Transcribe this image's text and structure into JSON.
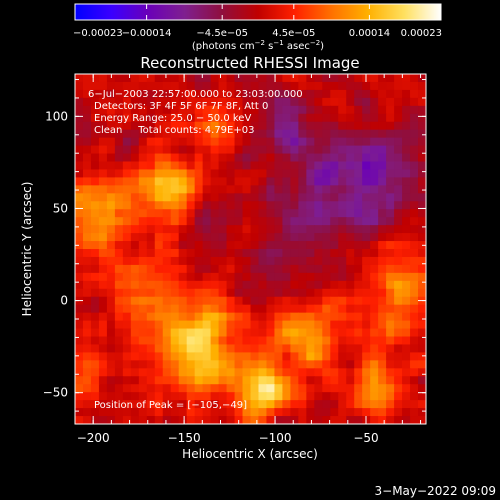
{
  "chart_data": {
    "type": "heatmap",
    "title": "Reconstructed RHESSI Image",
    "xlabel": "Heliocentric X (arcsec)",
    "ylabel": "Heliocentric Y (arcsec)",
    "xlim": [
      -210,
      -17
    ],
    "ylim": [
      -67,
      123
    ],
    "x_ticks": [
      {
        "v": -200,
        "label": "−200"
      },
      {
        "v": -150,
        "label": "−150"
      },
      {
        "v": -100,
        "label": "−100"
      },
      {
        "v": -50,
        "label": "−50"
      }
    ],
    "y_ticks": [
      {
        "v": 100,
        "label": "100"
      },
      {
        "v": 50,
        "label": "50"
      },
      {
        "v": 0,
        "label": "0"
      },
      {
        "v": -50,
        "label": "−50"
      }
    ],
    "colorbar": {
      "range": [
        -0.00023,
        0.00023
      ],
      "tick_labels": [
        {
          "v": -0.00023,
          "label": "−0.00023"
        },
        {
          "v": -0.00014,
          "label": "−0.00014"
        },
        {
          "v": -4.5e-05,
          "label": "−4.5e−05"
        },
        {
          "v": 4.5e-05,
          "label": "4.5e−05"
        },
        {
          "v": 0.00014,
          "label": "0.00014"
        },
        {
          "v": 0.00023,
          "label": "0.00023"
        }
      ],
      "unit_parts": {
        "pre": "(photons cm",
        "e1": "−2",
        "mid1": " s",
        "e2": "−1",
        "mid2": " asec",
        "e3": "−2",
        "post": ")"
      },
      "colors": [
        "#0000ff",
        "#3a00ff",
        "#6a00b8",
        "#7f1f8f",
        "#8f0f3f",
        "#c00000",
        "#ff2000",
        "#ff7000",
        "#ffb000",
        "#ffe060",
        "#ffffff"
      ]
    },
    "annotations": [
      "6−Jul−2003 22:57:00.000 to 23:03:00.000",
      "Detectors: 3F 4F 5F 6F 7F 8F, Att 0",
      "Energy Range: 25.0 − 50.0 keV",
      "Clean     Total counts: 4.79E+03"
    ],
    "peak_label": "Position of Peak = [−105,−49]",
    "peak": [
      -105,
      -49
    ],
    "hot_regions": [
      {
        "x": -160,
        "y": 60,
        "r": 18,
        "value": 0.00016
      },
      {
        "x": -200,
        "y": 45,
        "r": 20,
        "value": 0.00013
      },
      {
        "x": -140,
        "y": -25,
        "r": 25,
        "value": 0.00017
      },
      {
        "x": -105,
        "y": -49,
        "r": 12,
        "value": 0.00023
      },
      {
        "x": -85,
        "y": -20,
        "r": 18,
        "value": 0.00012
      },
      {
        "x": -30,
        "y": 5,
        "r": 22,
        "value": 0.00011
      },
      {
        "x": -175,
        "y": 5,
        "r": 20,
        "value": 0.0001
      },
      {
        "x": -45,
        "y": -45,
        "r": 20,
        "value": 9e-05
      },
      {
        "x": -130,
        "y": 95,
        "r": 16,
        "value": 8e-05
      },
      {
        "x": -205,
        "y": -40,
        "r": 14,
        "value": 9e-05
      }
    ],
    "cold_regions": [
      {
        "x": -70,
        "y": 60,
        "r": 28,
        "value": -0.0001
      },
      {
        "x": -100,
        "y": 95,
        "r": 18,
        "value": -7e-05
      },
      {
        "x": -40,
        "y": 75,
        "r": 20,
        "value": -8e-05
      },
      {
        "x": -135,
        "y": 40,
        "r": 16,
        "value": -5e-05
      },
      {
        "x": -105,
        "y": 15,
        "r": 16,
        "value": -6e-05
      }
    ]
  },
  "footer": {
    "date": "3−May−2022 09:09"
  }
}
